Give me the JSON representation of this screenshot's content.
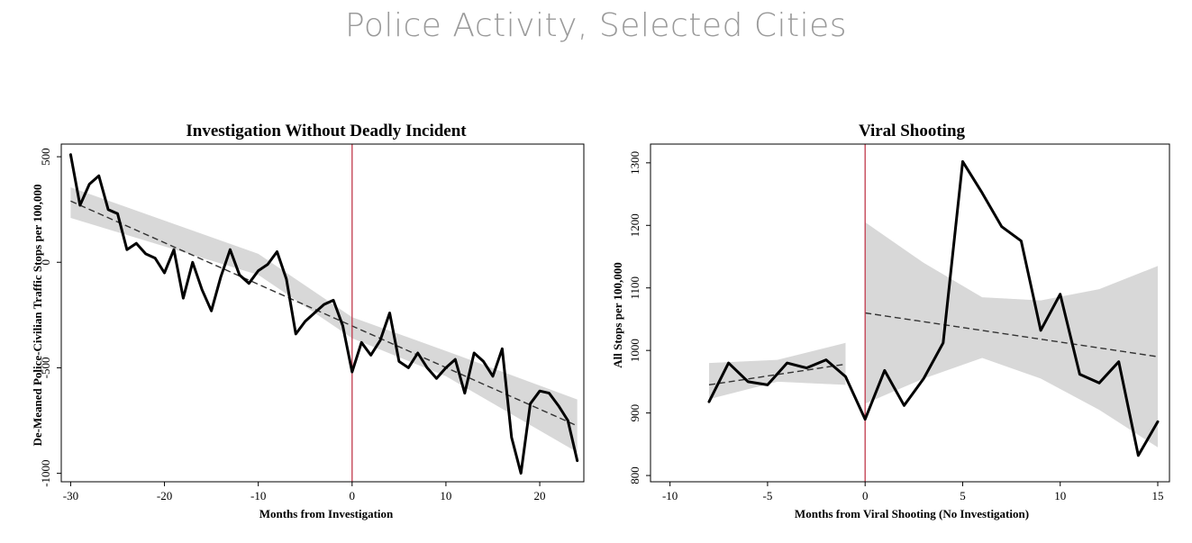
{
  "page": {
    "title": "Police Activity, Selected Cities"
  },
  "chart_data": [
    {
      "type": "line",
      "title": "Investigation Without Deadly Incident",
      "xlabel": "Months from Investigation",
      "ylabel": "De-Meaned Police-Civilian Traffic Stops per 100,000",
      "xlim": [
        -31,
        24.7
      ],
      "ylim": [
        -1040,
        560
      ],
      "xticks": [
        -30,
        -20,
        -10,
        0,
        10,
        20
      ],
      "yticks": [
        500,
        0,
        -500,
        -1000
      ],
      "vline": 0,
      "colors": {
        "line": "#000000",
        "vline": "#c0394b",
        "band": "#d8d8d8"
      },
      "series": [
        {
          "x": [
            -30,
            -29,
            -28,
            -27,
            -26,
            -25,
            -24,
            -23,
            -22,
            -21,
            -20,
            -19,
            -18,
            -17,
            -16,
            -15,
            -14,
            -13,
            -12,
            -11,
            -10,
            -9,
            -8,
            -7,
            -6,
            -5,
            -4,
            -3,
            -2,
            -1,
            0,
            1,
            2,
            3,
            4,
            5,
            6,
            7,
            8,
            9,
            10,
            11,
            12,
            13,
            14,
            15,
            16,
            17,
            18,
            19,
            20,
            21,
            22,
            23,
            24
          ],
          "y": [
            510,
            270,
            370,
            410,
            250,
            230,
            60,
            90,
            40,
            20,
            -50,
            60,
            -170,
            0,
            -130,
            -230,
            -70,
            60,
            -60,
            -100,
            -40,
            -10,
            50,
            -80,
            -340,
            -280,
            -240,
            -200,
            -180,
            -300,
            -520,
            -380,
            -440,
            -370,
            -240,
            -470,
            -500,
            -430,
            -500,
            -550,
            -500,
            -460,
            -620,
            -430,
            -470,
            -540,
            -410,
            -830,
            -1000,
            -670,
            -610,
            -620,
            -680,
            -750,
            -940
          ]
        }
      ],
      "trend": {
        "x": [
          -30,
          24
        ],
        "y": [
          290,
          -775
        ]
      },
      "band": {
        "x": [
          -30,
          -10,
          0,
          10,
          24
        ],
        "upper": [
          355,
          40,
          -260,
          -420,
          -650
        ],
        "lower": [
          210,
          -60,
          -360,
          -540,
          -900
        ]
      }
    },
    {
      "type": "line",
      "title": "Viral Shooting",
      "xlabel": "Months from Viral Shooting (No Investigation)",
      "ylabel": "All Stops per 100,000",
      "xlim": [
        -11,
        15.6
      ],
      "ylim": [
        790,
        1330
      ],
      "xticks": [
        -10,
        -5,
        0,
        5,
        10,
        15
      ],
      "yticks": [
        1300,
        1200,
        1100,
        1000,
        900,
        800
      ],
      "vline": 0,
      "colors": {
        "line": "#000000",
        "vline": "#c0394b",
        "band": "#d8d8d8"
      },
      "series": [
        {
          "x": [
            -8,
            -7,
            -6,
            -5,
            -4,
            -3,
            -2,
            -1,
            0,
            1,
            2,
            3,
            4,
            5,
            6,
            7,
            8,
            9,
            10,
            11,
            12,
            13,
            14,
            15
          ],
          "y": [
            918,
            980,
            950,
            945,
            980,
            972,
            985,
            958,
            890,
            968,
            912,
            955,
            1012,
            1302,
            1252,
            1198,
            1175,
            1032,
            1090,
            962,
            948,
            982,
            832,
            886
          ]
        }
      ],
      "trend_segments": [
        {
          "x": [
            -8,
            -1
          ],
          "y": [
            945,
            978
          ]
        },
        {
          "x": [
            0,
            15
          ],
          "y": [
            1060,
            990
          ]
        }
      ],
      "bands": [
        {
          "x": [
            -8,
            -4.5,
            -1
          ],
          "upper": [
            980,
            985,
            1012
          ],
          "lower": [
            922,
            950,
            945
          ]
        },
        {
          "x": [
            0,
            3,
            6,
            9,
            12,
            15
          ],
          "upper": [
            1205,
            1140,
            1085,
            1080,
            1098,
            1135
          ],
          "lower": [
            915,
            955,
            988,
            955,
            905,
            845
          ]
        }
      ]
    }
  ]
}
